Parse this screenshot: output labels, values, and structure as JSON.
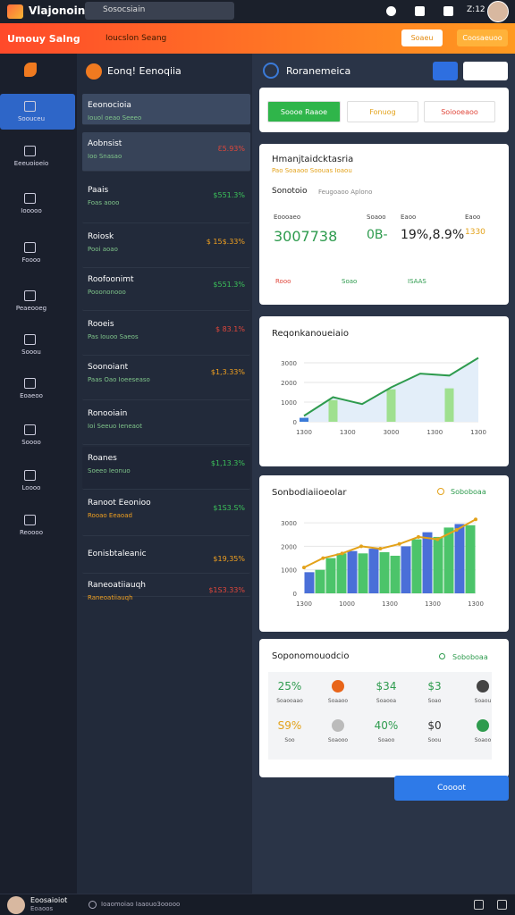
{
  "topbar": {
    "app_title": "Vlajonoin",
    "search_placeholder": "Sosocsiain",
    "time": "Z:12"
  },
  "banner": {
    "title": "Umouy Salng",
    "subtitle": "Ioucslon Seang",
    "buttons": [
      "Soaeu",
      "Coosaeuoo"
    ]
  },
  "sidebar": {
    "items": [
      "Soouceu",
      "Eeeuoioeio",
      "Iooooo",
      "Foooo",
      "Peaeooeg",
      "Sooou",
      "Eoaeoo",
      "Soooo",
      "Loooo",
      "Reoooo"
    ]
  },
  "list": {
    "title": "Eonq! Eenoqiia",
    "items": [
      {
        "title": "Eeonocioia",
        "subtitle": "Iouol oeao Seeeo",
        "value": null,
        "tone": "none"
      },
      {
        "title": "Aobnsist",
        "subtitle": "Ioo Snasao",
        "value": "Ɛ5.93%",
        "tone": "red"
      },
      {
        "title": "Paais",
        "subtitle": "Foas aooo",
        "value": "$551.3%",
        "tone": "green"
      },
      {
        "title": "Roiosk",
        "subtitle": "Pooi aoao",
        "value": "$ 15$.33%",
        "tone": "orange"
      },
      {
        "title": "Roofoonimt",
        "subtitle": "Pooononooo",
        "value": "$551.3%",
        "tone": "green"
      },
      {
        "title": "Rooeis",
        "subtitle": "Pas Iouoo Saeos",
        "value": "$ 83.1%",
        "tone": "red"
      },
      {
        "title": "Soonoiant",
        "subtitle": "Paas Oao Ioeeseaso",
        "value": "$1,3.33%",
        "tone": "orange"
      },
      {
        "title": "Ronooiain",
        "subtitle": "Ioi Seeuo Ieneaot",
        "value": null,
        "tone": "none"
      },
      {
        "title": "Roanes",
        "subtitle": "Soeeo Ieonuo",
        "value": "$1,13.3%",
        "tone": "green"
      },
      {
        "title": "Ranoot Eeonioo",
        "subtitle": "Rooao Eeaoad",
        "value": "$1S3.S%",
        "tone": "green"
      },
      {
        "title": "Eonisbtaleanic",
        "subtitle": null,
        "value": "$19,35%",
        "tone": "orange"
      },
      {
        "title": "Raneoatiiauqh",
        "subtitle": "Raneoatiiauqh",
        "value": "$1S3.33%",
        "tone": "red"
      }
    ]
  },
  "panel": {
    "title": "Roranemeica",
    "tabs": [
      "Soooe Raaoe",
      "Fonuog",
      "Soiooeaoo"
    ],
    "summary": {
      "title": "Hmanjtaidcktasria",
      "subtitle": "Pao Soaaoo Soouas Ioaou",
      "section": "Sonotoio",
      "section_note": "Feugoaoo Aplono",
      "stats": [
        {
          "label": "Eoooaeo",
          "value": "3007738"
        },
        {
          "label": "Soaoo",
          "value": "0B-"
        },
        {
          "label": "Eaoo",
          "value": "19%,8.9%"
        },
        {
          "label": "Eaoo",
          "value": "1330"
        }
      ],
      "footer": [
        "Rooo",
        "Soao",
        "ISAAS"
      ]
    },
    "line_chart": {
      "title": "Reqonkanoueiaio",
      "ylim": [
        0,
        3500
      ],
      "yticks": [
        0,
        1000,
        2000,
        3000
      ],
      "line_values": [
        300,
        1250,
        900,
        1750,
        2450,
        2350,
        3250
      ],
      "line_color": "#2e9b4e",
      "bar_values": [
        200,
        1100,
        null,
        1650,
        null,
        1700,
        null
      ],
      "bar_color": "#9fe08f",
      "x_labels": [
        "1300",
        "1300",
        "3000",
        "1300",
        "1300"
      ]
    },
    "bar_chart": {
      "title": "Sonbodiaiioeolar",
      "legend": "Soboboaa",
      "ylim": [
        0,
        3500
      ],
      "yticks": [
        0,
        1000,
        2000,
        3000
      ],
      "bar_values": [
        900,
        1000,
        1500,
        1700,
        1800,
        1700,
        1900,
        1750,
        1600,
        2000,
        2300,
        2600,
        2400,
        2800,
        2950,
        2900
      ],
      "bar_colors": [
        "#4a6fd8",
        "#4cc46a",
        "#4cc46a",
        "#4cc46a",
        "#4a6fd8",
        "#4cc46a",
        "#4a6fd8",
        "#4cc46a",
        "#4cc46a",
        "#4a6fd8",
        "#4cc46a",
        "#4a6fd8",
        "#4cc46a",
        "#4cc46a",
        "#4a6fd8",
        "#4cc46a"
      ],
      "line_values": [
        1100,
        1500,
        1700,
        2000,
        1900,
        2100,
        2400,
        2300,
        2700,
        3150
      ],
      "line_color": "#e3a21a",
      "x_labels": [
        "1300",
        "1000",
        "1300",
        "1300",
        "1300"
      ]
    },
    "stats_card": {
      "title": "Soponomouodcio",
      "legend": "Soboboaa",
      "items": [
        {
          "value": "25%",
          "label": "Soaooaao",
          "color": "#2e9b4e"
        },
        {
          "value": "",
          "label": "Soaaoo",
          "color": "#e8651a"
        },
        {
          "value": "$34",
          "label": "Soaooa",
          "color": "#2e9b4e"
        },
        {
          "value": "$3",
          "label": "Soao",
          "color": "#2e9b4e"
        },
        {
          "value": "",
          "label": "Soaou",
          "color": "#444"
        },
        {
          "value": "S9%",
          "label": "Soo",
          "color": "#e3a21a"
        },
        {
          "value": "",
          "label": "Soaooo",
          "color": "#bbb"
        },
        {
          "value": "40%",
          "label": "Soaoo",
          "color": "#2e9b4e"
        },
        {
          "value": "$0",
          "label": "Soou",
          "color": "#333"
        },
        {
          "value": "",
          "label": "Soaoo",
          "color": "#2e9b4e"
        }
      ]
    },
    "action": "Coooot"
  },
  "footer": {
    "user": "Eoosaioiot",
    "role": "Eoaoos",
    "status": "Ioaomoiao Iaaouo3ooooo"
  }
}
